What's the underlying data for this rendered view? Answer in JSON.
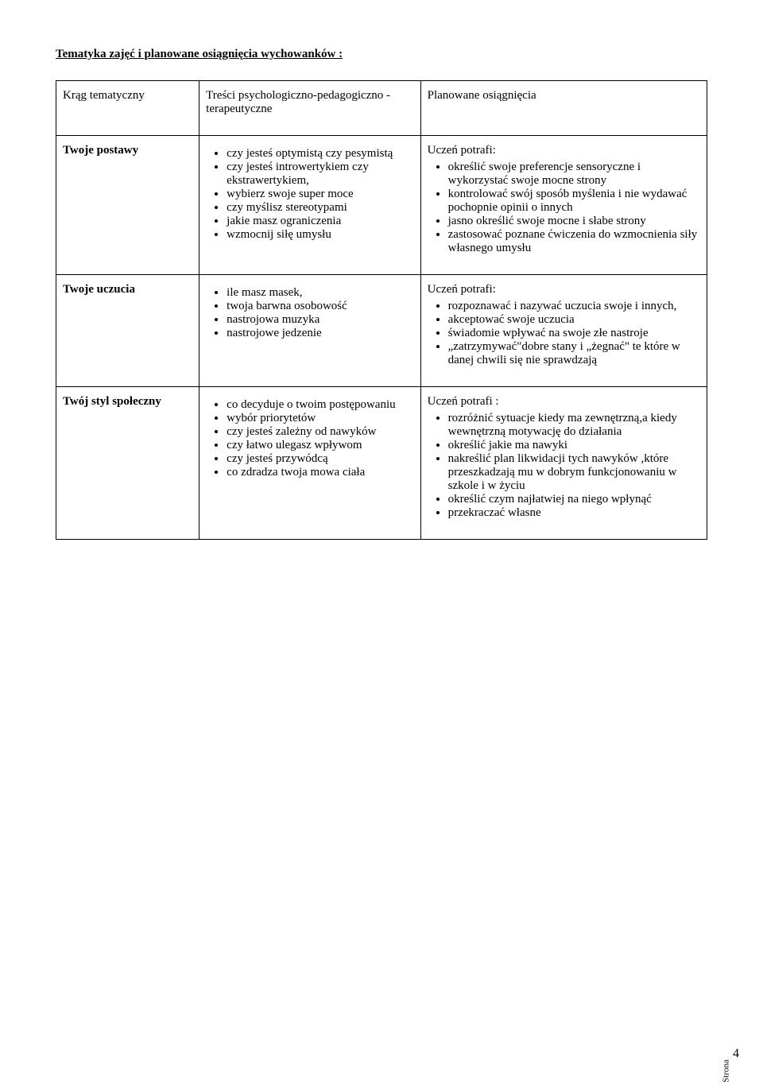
{
  "title": "Tematyka zajęć i planowane osiągnięcia wychowanków :",
  "header": {
    "col1": "Krąg tematyczny",
    "col2": "Treści psychologiczno-pedagogiczno - terapeutyczne",
    "col3": "Planowane osiągnięcia"
  },
  "rows": [
    {
      "topic": "Twoje postawy",
      "contents": [
        "czy jesteś optymistą czy pesymistą",
        "czy jesteś introwertykiem czy ekstrawertykiem,",
        "wybierz swoje super moce",
        "czy myślisz stereotypami",
        "jakie masz ograniczenia",
        "wzmocnij siłę umysłu"
      ],
      "outcome_lead": "Uczeń potrafi:",
      "outcomes": [
        "określić swoje preferencje sensoryczne i wykorzystać swoje mocne strony",
        "kontrolować swój sposób myślenia i nie wydawać pochopnie opinii o innych",
        "jasno określić swoje mocne i słabe strony",
        "zastosować poznane ćwiczenia do wzmocnienia siły własnego umysłu"
      ]
    },
    {
      "topic": "Twoje uczucia",
      "contents": [
        "ile masz masek,",
        "twoja barwna osobowość",
        "nastrojowa muzyka",
        "nastrojowe jedzenie"
      ],
      "outcome_lead": "Uczeń potrafi:",
      "outcomes": [
        "rozpoznawać i nazywać uczucia swoje i innych,",
        "akceptować swoje uczucia",
        "świadomie wpływać na swoje złe nastroje",
        "„zatrzymywać\"dobre stany i „żegnać\" te które w danej chwili się nie sprawdzają"
      ]
    },
    {
      "topic": "Twój styl społeczny",
      "contents": [
        "co decyduje o twoim postępowaniu",
        "wybór priorytetów",
        "czy jesteś zależny od nawyków",
        "czy łatwo ulegasz wpływom",
        "czy jesteś przywódcą",
        "co zdradza twoja mowa ciała"
      ],
      "outcome_lead": "Uczeń potrafi :",
      "outcomes": [
        "rozróżnić sytuacje kiedy ma zewnętrzną,a kiedy wewnętrzną motywację do działania",
        "określić jakie ma nawyki",
        "nakreślić plan likwidacji tych nawyków ,które przeszkadzają mu w dobrym funkcjonowaniu w szkole i w życiu",
        "określić czym najłatwiej na niego wpłynąć",
        "przekraczać własne"
      ]
    }
  ],
  "pagenum": {
    "label": "Strona",
    "num": "4"
  }
}
